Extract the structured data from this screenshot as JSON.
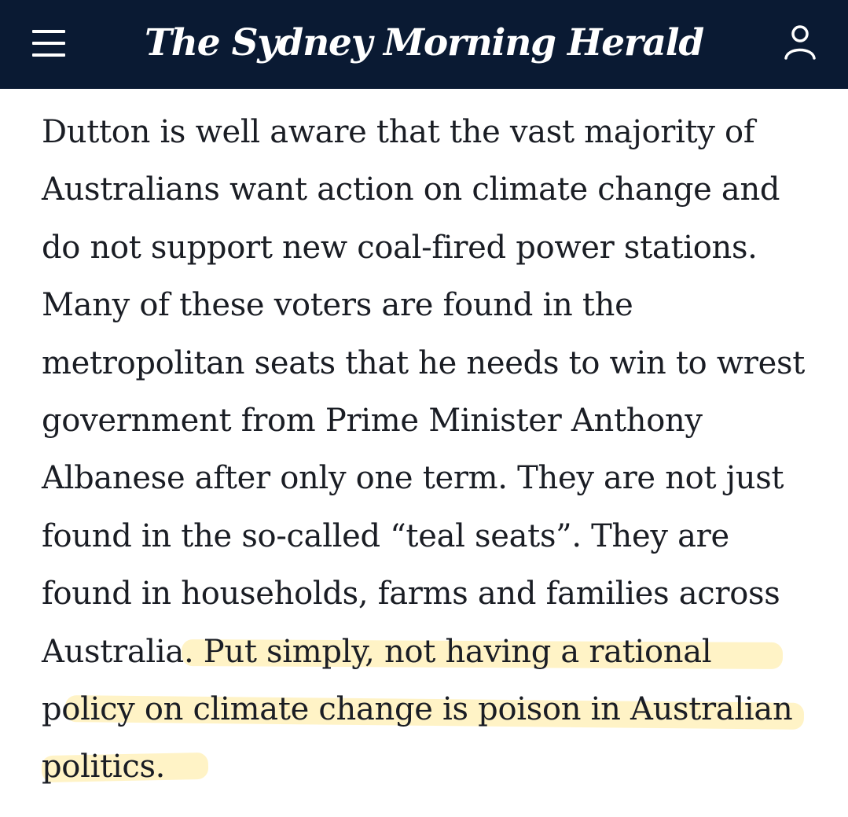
{
  "header": {
    "masthead": "The Sydney Morning Herald",
    "menu_icon": "hamburger-menu-icon",
    "account_icon": "user-account-icon",
    "background_color": "#0a1a33"
  },
  "article": {
    "lines": [
      "Dutton is well aware that the vast majority of",
      "Australians want action on climate change and",
      "do not support new coal-fired power stations.",
      "Many of these voters are found in the",
      "metropolitan seats that he needs to win to wrest",
      "government from Prime Minister Anthony",
      "Albanese after only one term. They are not just",
      "found in the so-called “teal seats”. They are",
      "found in households, farms and families across",
      "Australia. Put simply, not having a rational",
      "policy on climate change is poison in Australian",
      "politics."
    ],
    "highlight_color": "#ffe278"
  }
}
